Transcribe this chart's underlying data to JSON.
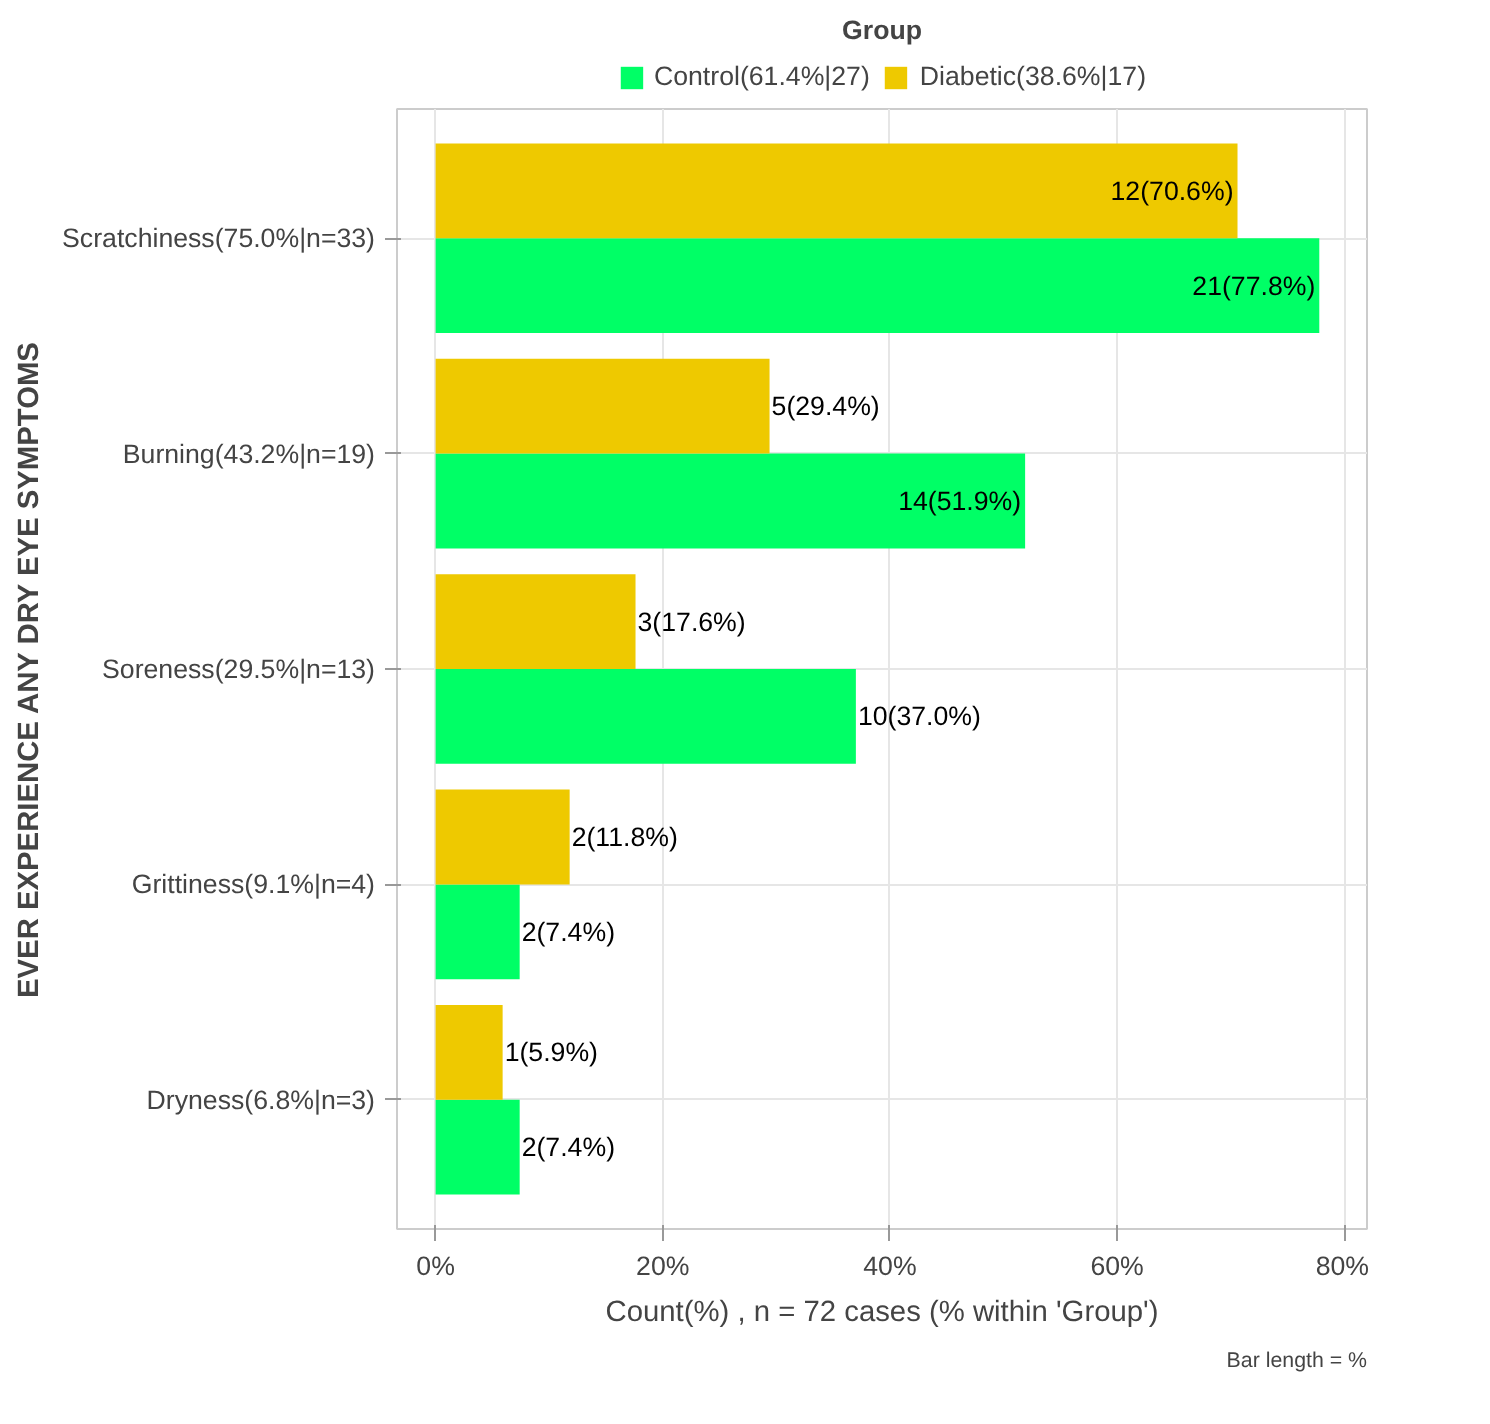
{
  "chart_data": {
    "type": "bar",
    "orientation": "horizontal",
    "xlabel": "Count(%) , n = 72 cases (% within 'Group')",
    "ylabel": "EVER EXPERIENCE ANY DRY EYE SYMPTOMS",
    "legend_title": "Group",
    "legend": "top",
    "categories": [
      "Scratchiness(75.0%|n=33)",
      "Burning(43.2%|n=19)",
      "Soreness(29.5%|n=13)",
      "Grittiness(9.1%|n=4)",
      "Dryness(6.8%|n=3)"
    ],
    "series": [
      {
        "name": "Control(61.4%|27)",
        "color": "#00ff66",
        "values": [
          77.8,
          51.9,
          37.0,
          7.4,
          7.4
        ],
        "value_labels": [
          "21(77.8%)",
          "14(51.9%)",
          "10(37.0%)",
          "2(7.4%)",
          "2(7.4%)"
        ]
      },
      {
        "name": "Diabetic(38.6%|17)",
        "color": "#eec900",
        "values": [
          70.6,
          29.4,
          17.6,
          11.8,
          5.9
        ],
        "value_labels": [
          "12(70.6%)",
          "5(29.4%)",
          "3(17.6%)",
          "2(11.8%)",
          "1(5.9%)"
        ]
      }
    ],
    "xlim": [
      -3.4,
      82
    ],
    "xticks": [
      {
        "value": 0,
        "label": "0%"
      },
      {
        "value": 20,
        "label": "20%"
      },
      {
        "value": 40,
        "label": "40%"
      },
      {
        "value": 60,
        "label": "60%"
      },
      {
        "value": 80,
        "label": "80%"
      }
    ],
    "grid": true,
    "annotations": [
      "Bar length = %"
    ]
  }
}
